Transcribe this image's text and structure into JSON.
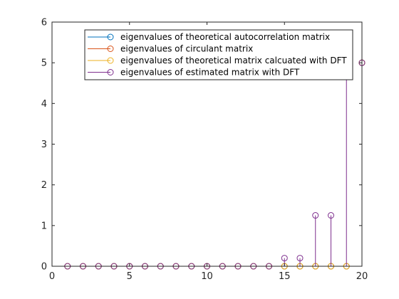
{
  "chart_data": {
    "type": "stem",
    "title": "",
    "xlabel": "",
    "ylabel": "",
    "xlim": [
      0,
      20
    ],
    "ylim": [
      0,
      6
    ],
    "x_ticks": [
      0,
      5,
      10,
      15,
      20
    ],
    "y_ticks": [
      0,
      1,
      2,
      3,
      4,
      5,
      6
    ],
    "grid": false,
    "legend_position": "top-right",
    "x": [
      1,
      2,
      3,
      4,
      5,
      6,
      7,
      8,
      9,
      10,
      11,
      12,
      13,
      14,
      15,
      16,
      17,
      18,
      19,
      20
    ],
    "series": [
      {
        "name": "eigenvalues of theoretical autocorrelation matrix",
        "color": "#0072bd",
        "values": [
          0,
          0,
          0,
          0,
          0,
          0,
          0,
          0,
          0,
          0,
          0,
          0,
          0,
          0,
          0,
          0,
          0,
          0,
          0,
          5
        ]
      },
      {
        "name": "eigenvalues of circulant matrix",
        "color": "#d95319",
        "values": [
          0,
          0,
          0,
          0,
          0,
          0,
          0,
          0,
          0,
          0,
          0,
          0,
          0,
          0,
          0,
          0,
          0,
          0,
          0,
          5
        ]
      },
      {
        "name": "eigenvalues of theoretical matrix calcuated with DFT",
        "color": "#edb120",
        "values": [
          0,
          0,
          0,
          0,
          0,
          0,
          0,
          0,
          0,
          0,
          0,
          0,
          0,
          0,
          0,
          0,
          0,
          0,
          0,
          5
        ]
      },
      {
        "name": "eigenvalues of estimated matrix with DFT",
        "color": "#7e2f8e",
        "values": [
          0,
          0,
          0,
          0,
          0,
          0,
          0,
          0,
          0,
          0,
          0,
          0,
          0,
          0,
          0.2,
          0.2,
          1.25,
          1.25,
          5.0,
          5.0
        ]
      }
    ]
  }
}
